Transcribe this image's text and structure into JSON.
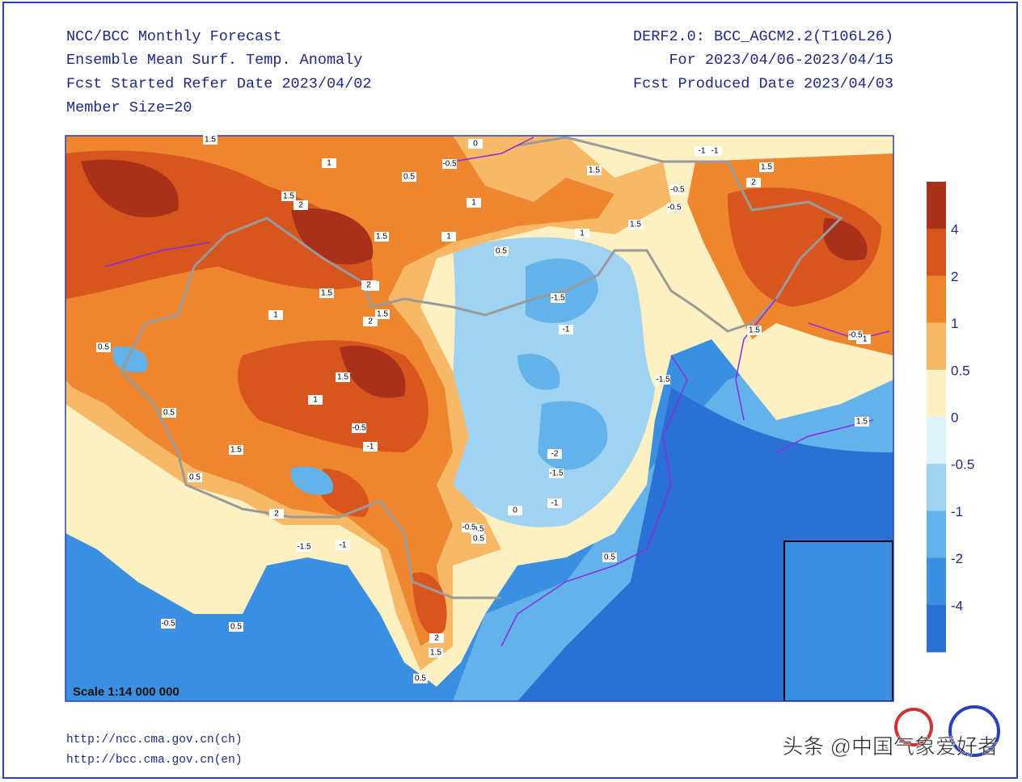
{
  "header": {
    "left": [
      "NCC/BCC Monthly Forecast",
      "Ensemble Mean Surf. Temp. Anomaly",
      "Fcst Started Refer Date 2023/04/02",
      "Member Size=20"
    ],
    "right": [
      "DERF2.0: BCC_AGCM2.2(T106L26)",
      "For 2023/04/06-2023/04/15",
      "Fcst Produced Date 2023/04/03"
    ]
  },
  "map": {
    "scale": "Scale 1:14 000 000",
    "contour_labels": [
      1.5,
      1,
      0.5,
      -0.5,
      0,
      -1,
      1.5,
      2,
      1.5,
      1,
      0.5,
      2,
      1.5,
      2,
      1.5,
      1.5,
      2,
      1,
      1.5,
      0.5,
      2,
      1.5,
      1,
      2,
      1,
      -0.5,
      -1,
      1.5,
      0.5,
      -0.5,
      -1,
      -1.5,
      -2,
      -1.5,
      -1,
      -1,
      -0.5,
      0.5,
      1,
      -0.5,
      0.5,
      2,
      1.5,
      0.5,
      0.5,
      -1.5,
      -0.5,
      -1,
      0.5,
      1.5,
      2,
      -0.5,
      0,
      -1.5,
      0.5,
      -1,
      -0.5,
      1.5,
      1.5
    ]
  },
  "colorbar": {
    "levels": [
      4,
      2,
      1,
      0.5,
      0,
      -0.5,
      -1,
      -2,
      -4
    ],
    "colors": [
      "#a9301b",
      "#d8561e",
      "#ee862f",
      "#f7b868",
      "#fdf0c2",
      "#dcf3fb",
      "#9fd3f1",
      "#63b2ea",
      "#3b8fe1",
      "#2b70d4"
    ]
  },
  "footer": {
    "urls": [
      "http://ncc.cma.gov.cn(ch)",
      "http://bcc.cma.gov.cn(en)"
    ],
    "watermark": "头条 @中国气象爱好者"
  }
}
